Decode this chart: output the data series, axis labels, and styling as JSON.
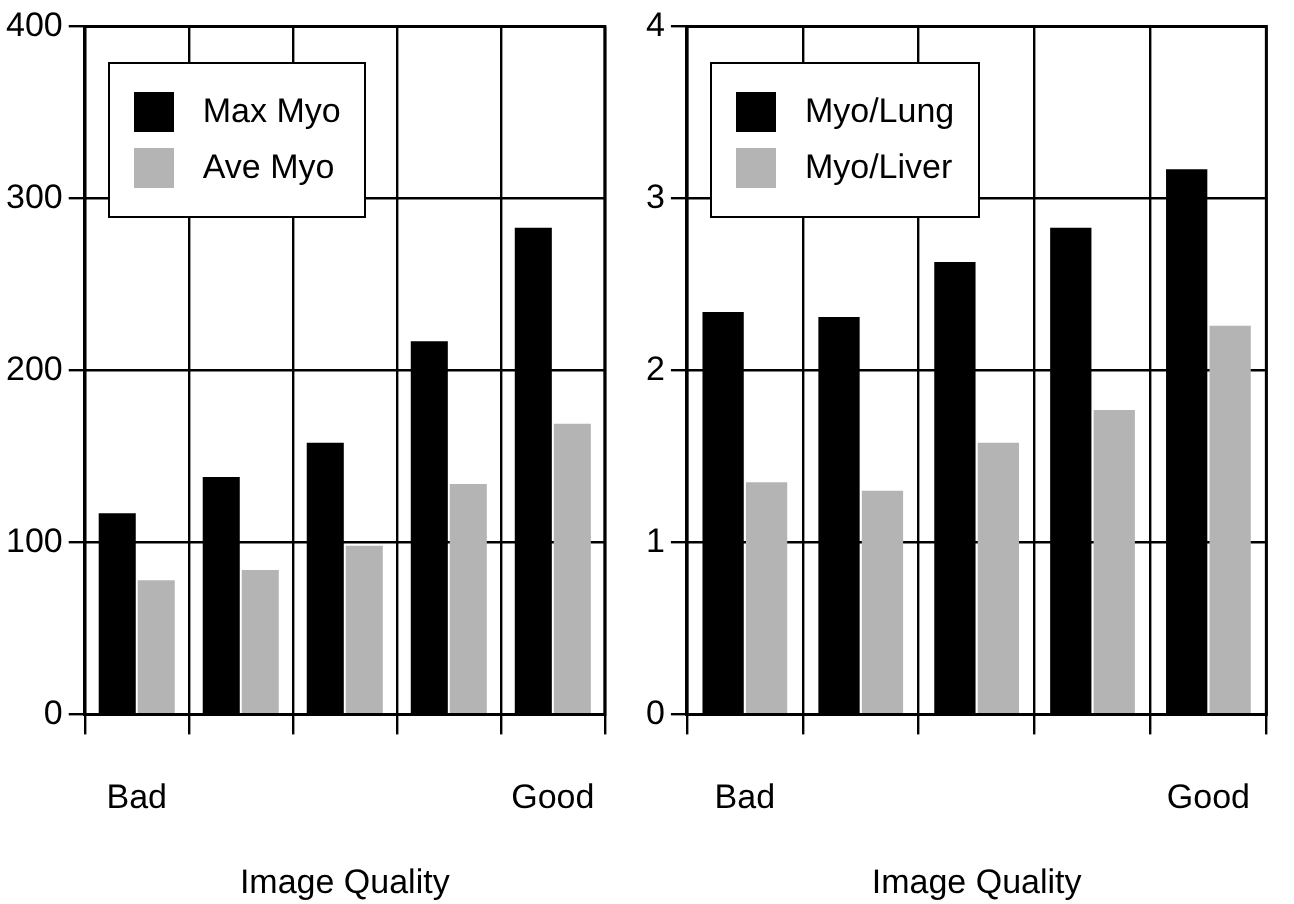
{
  "chart_data": [
    {
      "type": "bar",
      "categories": [
        "Bad",
        null,
        null,
        null,
        "Good"
      ],
      "xlabel": "Image Quality",
      "ylim": [
        0,
        400
      ],
      "yticks": [
        0,
        100,
        200,
        300,
        400
      ],
      "grid": true,
      "legend": "top left",
      "series": [
        {
          "name": "Max Myo",
          "color": "#000000",
          "values": [
            117,
            138,
            158,
            217,
            283
          ]
        },
        {
          "name": "Ave Myo",
          "color": "#b4b4b4",
          "values": [
            78,
            84,
            98,
            134,
            169
          ]
        }
      ]
    },
    {
      "type": "bar",
      "categories": [
        "Bad",
        null,
        null,
        null,
        "Good"
      ],
      "xlabel": "Image Quality",
      "ylim": [
        0,
        4
      ],
      "yticks": [
        0,
        1,
        2,
        3,
        4
      ],
      "grid": true,
      "legend": "top left",
      "series": [
        {
          "name": "Myo/Lung",
          "color": "#000000",
          "values": [
            2.34,
            2.31,
            2.63,
            2.83,
            3.17
          ]
        },
        {
          "name": "Myo/Liver",
          "color": "#b4b4b4",
          "values": [
            1.35,
            1.3,
            1.58,
            1.77,
            2.26
          ]
        }
      ]
    }
  ]
}
